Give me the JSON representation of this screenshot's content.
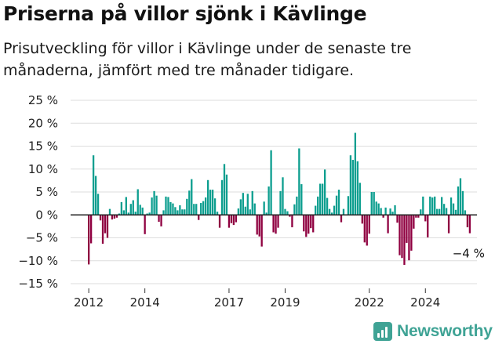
{
  "header": {
    "title": "Priserna på villor sjönk i Kävlinge",
    "subtitle": "Prisutveckling för villor i Kävlinge under de senaste tre månaderna, jämfört med tre månader tidigare."
  },
  "brand": {
    "name": "Newsworthy",
    "icon": "newsworthy-logo-icon",
    "color": "#3fa395"
  },
  "colors": {
    "positive": "#0c9e8f",
    "negative": "#8f0040",
    "grid": "#dddddd",
    "zero_line": "#222222"
  },
  "chart_data": {
    "type": "bar",
    "title": "Priserna på villor sjönk i Kävlinge",
    "subtitle": "Prisutveckling för villor i Kävlinge under de senaste tre månaderna, jämfört med tre månader tidigare.",
    "xlabel": "",
    "ylabel": "",
    "ylim": [
      -15,
      25
    ],
    "y_ticks": [
      25,
      20,
      15,
      10,
      5,
      0,
      -5,
      -10,
      -15
    ],
    "y_tick_labels": [
      "25 %",
      "20 %",
      "15 %",
      "10 %",
      "5 %",
      "0 %",
      "−5 %",
      "−10 %",
      "−15 %"
    ],
    "x_ticks": [
      2012,
      2014,
      2017,
      2019,
      2022,
      2024
    ],
    "x_tick_labels": [
      "2012",
      "2014",
      "2017",
      "2019",
      "2022",
      "2024"
    ],
    "grid": true,
    "legend": "none",
    "annotation": {
      "text": "−4 %",
      "for": "last"
    },
    "start_period": "2012-01",
    "frequency": "monthly",
    "values": [
      -10.8,
      -6.2,
      13.0,
      8.5,
      4.6,
      -1.2,
      -6.3,
      -4.0,
      -5.0,
      1.3,
      -1.0,
      -0.8,
      -0.6,
      0.3,
      2.8,
      1.0,
      3.9,
      0.5,
      2.4,
      3.2,
      0.7,
      5.6,
      2.2,
      1.6,
      -4.2,
      0.3,
      0.5,
      3.8,
      5.2,
      4.2,
      -1.5,
      -2.5,
      1.0,
      4.0,
      3.9,
      2.8,
      2.5,
      1.7,
      1.0,
      2.1,
      1.2,
      1.2,
      3.5,
      5.3,
      7.8,
      2.4,
      2.4,
      -1.1,
      2.6,
      3.0,
      3.8,
      7.6,
      5.5,
      5.5,
      3.6,
      0.7,
      -2.8,
      7.6,
      11.1,
      8.8,
      -2.8,
      -1.8,
      -2.2,
      -1.6,
      1.4,
      3.4,
      4.8,
      1.8,
      4.6,
      1.2,
      5.2,
      2.5,
      -4.3,
      -4.7,
      -6.9,
      2.9,
      0.5,
      6.2,
      14.1,
      -3.8,
      -4.1,
      -2.8,
      5.2,
      8.2,
      1.3,
      0.8,
      -0.4,
      -2.7,
      2.3,
      4.0,
      14.5,
      6.7,
      -3.6,
      -4.8,
      -4.1,
      -2.9,
      -3.8,
      2.0,
      4.0,
      6.8,
      6.8,
      9.9,
      3.7,
      1.3,
      0.5,
      2.0,
      4.2,
      5.5,
      -1.6,
      1.3,
      0.0,
      4.1,
      13.0,
      12.0,
      17.9,
      11.7,
      7.0,
      -1.9,
      -6.0,
      -6.7,
      -4.1,
      5.0,
      5.0,
      2.9,
      2.5,
      1.5,
      -0.6,
      1.6,
      -4.0,
      1.4,
      0.7,
      2.1,
      -1.7,
      -8.8,
      -9.4,
      -10.9,
      -6.1,
      -9.9,
      -7.8,
      -3.0,
      -0.6,
      -0.6,
      1.2,
      4.0,
      -1.4,
      -4.9,
      4.0,
      3.8,
      4.0,
      1.3,
      1.3,
      3.9,
      2.4,
      1.5,
      -4.0,
      3.8,
      2.5,
      1.1,
      6.2,
      8.0,
      5.2,
      1.0,
      -2.7,
      -4.0
    ]
  }
}
